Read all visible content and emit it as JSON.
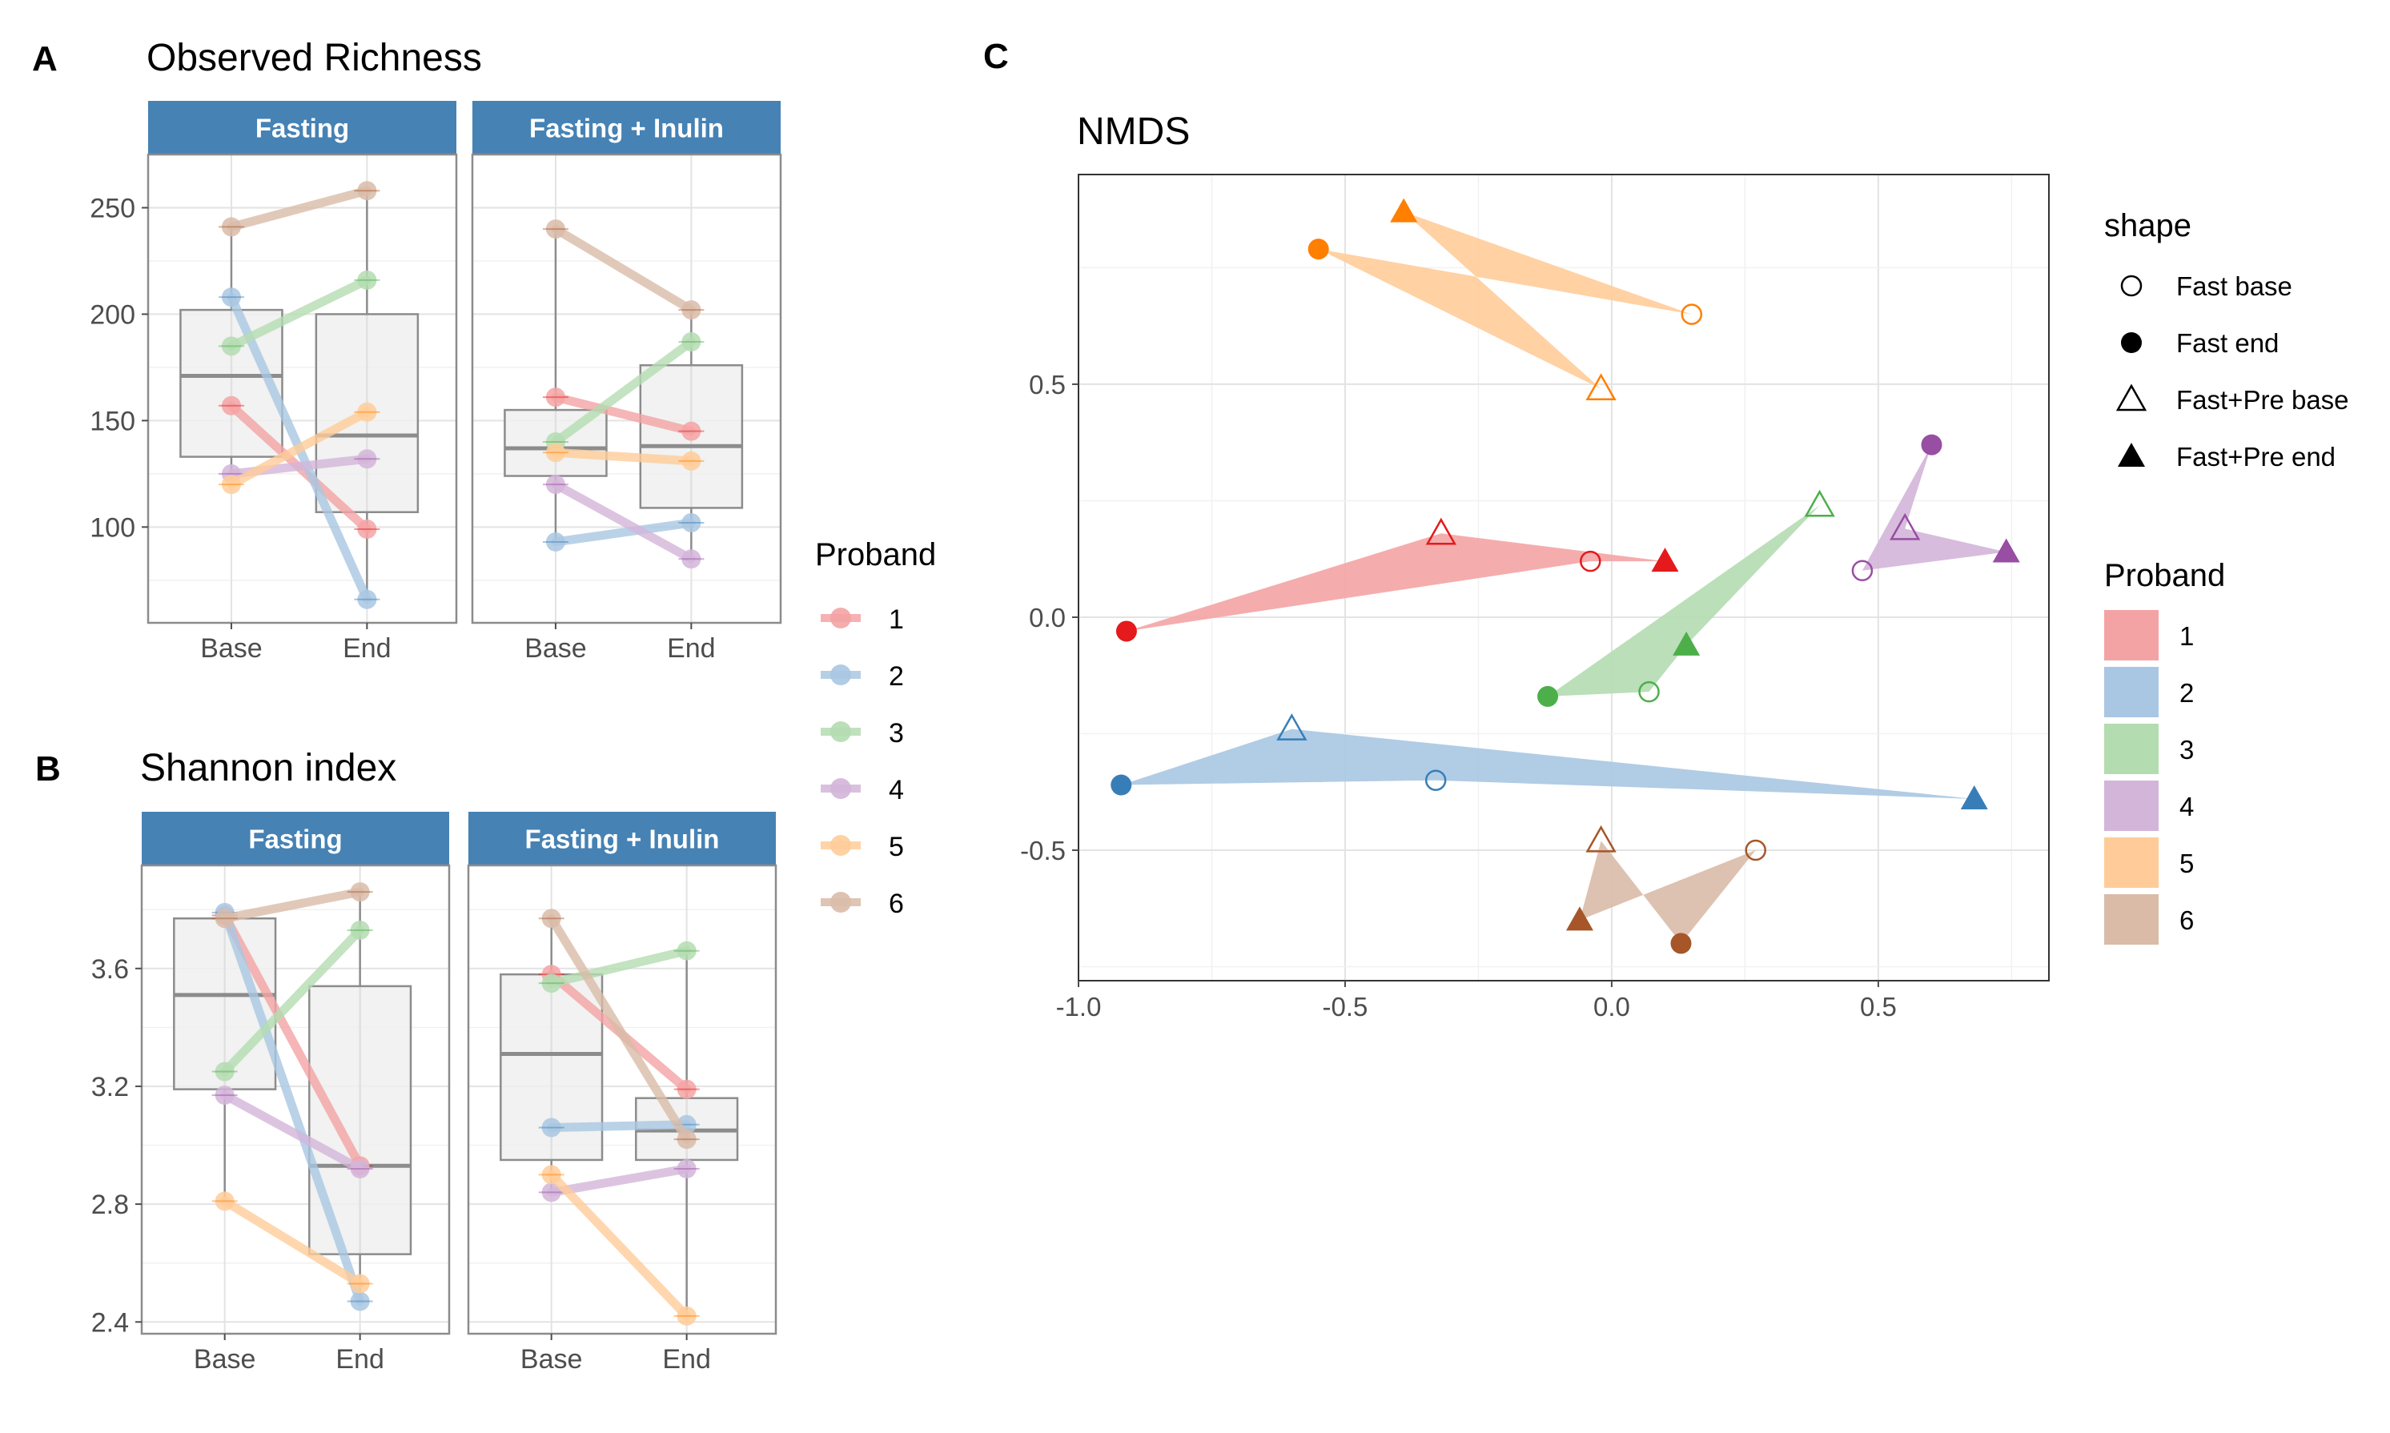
{
  "panels": {
    "A": {
      "label": "A",
      "title": "Observed Richness"
    },
    "B": {
      "label": "B",
      "title": "Shannon index"
    },
    "C": {
      "label": "C",
      "title": "NMDS"
    }
  },
  "colors": {
    "strip_bg": "#4682b4",
    "proband": {
      "1": "#e41a1c",
      "2": "#377eb8",
      "3": "#4daf4a",
      "4": "#984ea3",
      "5": "#ff7f00",
      "6": "#a65628"
    },
    "proband_light": {
      "1": "#f4a3a4",
      "2": "#a9c7e2",
      "3": "#b4dcb1",
      "4": "#d3b5d9",
      "5": "#ffcc99",
      "6": "#d9bba8"
    }
  },
  "chart_data": [
    {
      "id": "A",
      "type": "box-with-paired-lines",
      "title": "Observed Richness",
      "facets": [
        "Fasting",
        "Fasting + Inulin"
      ],
      "categories": [
        "Base",
        "End"
      ],
      "ylim": [
        55,
        275
      ],
      "yticks": [
        100,
        150,
        200,
        250
      ],
      "series": [
        {
          "name": "1",
          "Fasting": [
            157,
            99
          ],
          "Fasting + Inulin": [
            161,
            145
          ]
        },
        {
          "name": "2",
          "Fasting": [
            208,
            66
          ],
          "Fasting + Inulin": [
            93,
            102
          ]
        },
        {
          "name": "3",
          "Fasting": [
            185,
            216
          ],
          "Fasting + Inulin": [
            140,
            187
          ]
        },
        {
          "name": "4",
          "Fasting": [
            125,
            132
          ],
          "Fasting + Inulin": [
            120,
            85
          ]
        },
        {
          "name": "5",
          "Fasting": [
            120,
            154
          ],
          "Fasting + Inulin": [
            135,
            131
          ]
        },
        {
          "name": "6",
          "Fasting": [
            241,
            258
          ],
          "Fasting + Inulin": [
            240,
            202
          ]
        }
      ],
      "boxes": {
        "Fasting": {
          "Base": [
            120,
            133,
            171,
            202,
            241
          ],
          "End": [
            66,
            107,
            143,
            200,
            258
          ]
        },
        "Fasting + Inulin": {
          "Base": [
            93,
            124,
            137,
            155,
            240
          ],
          "End": [
            85,
            109,
            138,
            176,
            202
          ]
        }
      }
    },
    {
      "id": "B",
      "type": "box-with-paired-lines",
      "title": "Shannon index",
      "facets": [
        "Fasting",
        "Fasting + Inulin"
      ],
      "categories": [
        "Base",
        "End"
      ],
      "ylim": [
        2.36,
        3.95
      ],
      "yticks": [
        2.4,
        2.8,
        3.2,
        3.6
      ],
      "ytick_labels": [
        "2.4",
        "2.8",
        "3.2",
        "3.6"
      ],
      "series": [
        {
          "name": "1",
          "Fasting": [
            3.78,
            2.93
          ],
          "Fasting + Inulin": [
            3.58,
            3.19
          ]
        },
        {
          "name": "2",
          "Fasting": [
            3.79,
            2.47
          ],
          "Fasting + Inulin": [
            3.06,
            3.07
          ]
        },
        {
          "name": "3",
          "Fasting": [
            3.25,
            3.73
          ],
          "Fasting + Inulin": [
            3.55,
            3.66
          ]
        },
        {
          "name": "4",
          "Fasting": [
            3.17,
            2.92
          ],
          "Fasting + Inulin": [
            2.84,
            2.92
          ]
        },
        {
          "name": "5",
          "Fasting": [
            2.81,
            2.53
          ],
          "Fasting + Inulin": [
            2.9,
            2.42
          ]
        },
        {
          "name": "6",
          "Fasting": [
            3.77,
            3.86
          ],
          "Fasting + Inulin": [
            3.77,
            3.02
          ]
        }
      ],
      "boxes": {
        "Fasting": {
          "Base": [
            2.81,
            3.19,
            3.51,
            3.77,
            3.79
          ],
          "End": [
            2.47,
            2.63,
            2.93,
            3.54,
            3.86
          ]
        },
        "Fasting + Inulin": {
          "Base": [
            2.84,
            2.95,
            3.31,
            3.58,
            3.77
          ],
          "End": [
            2.42,
            2.95,
            3.05,
            3.16,
            3.66
          ]
        }
      }
    },
    {
      "id": "C",
      "type": "scatter",
      "title": "NMDS",
      "xlim": [
        -1.0,
        0.82
      ],
      "ylim": [
        -0.78,
        0.95
      ],
      "xticks": [
        -1.0,
        -0.5,
        0.0,
        0.5
      ],
      "xtick_labels": [
        "-1.0",
        "-0.5",
        "0.0",
        "0.5"
      ],
      "yticks": [
        -0.5,
        0.0,
        0.5
      ],
      "ytick_labels": [
        "-0.5",
        "0.0",
        "0.5"
      ],
      "shape_order": [
        "Fast base",
        "Fast end",
        "Fast+Pre base",
        "Fast+Pre end"
      ],
      "points": [
        {
          "proband": "1",
          "shape": "Fast base",
          "x": -0.04,
          "y": 0.12
        },
        {
          "proband": "1",
          "shape": "Fast end",
          "x": -0.91,
          "y": -0.03
        },
        {
          "proband": "1",
          "shape": "Fast+Pre base",
          "x": -0.32,
          "y": 0.18
        },
        {
          "proband": "1",
          "shape": "Fast+Pre end",
          "x": 0.1,
          "y": 0.12
        },
        {
          "proband": "2",
          "shape": "Fast base",
          "x": -0.33,
          "y": -0.35
        },
        {
          "proband": "2",
          "shape": "Fast end",
          "x": -0.92,
          "y": -0.36
        },
        {
          "proband": "2",
          "shape": "Fast+Pre base",
          "x": -0.6,
          "y": -0.24
        },
        {
          "proband": "2",
          "shape": "Fast+Pre end",
          "x": 0.68,
          "y": -0.39
        },
        {
          "proband": "3",
          "shape": "Fast base",
          "x": 0.07,
          "y": -0.16
        },
        {
          "proband": "3",
          "shape": "Fast end",
          "x": -0.12,
          "y": -0.17
        },
        {
          "proband": "3",
          "shape": "Fast+Pre base",
          "x": 0.39,
          "y": 0.24
        },
        {
          "proband": "3",
          "shape": "Fast+Pre end",
          "x": 0.14,
          "y": -0.06
        },
        {
          "proband": "4",
          "shape": "Fast base",
          "x": 0.47,
          "y": 0.1
        },
        {
          "proband": "4",
          "shape": "Fast end",
          "x": 0.6,
          "y": 0.37
        },
        {
          "proband": "4",
          "shape": "Fast+Pre base",
          "x": 0.55,
          "y": 0.19
        },
        {
          "proband": "4",
          "shape": "Fast+Pre end",
          "x": 0.74,
          "y": 0.14
        },
        {
          "proband": "5",
          "shape": "Fast base",
          "x": 0.15,
          "y": 0.65
        },
        {
          "proband": "5",
          "shape": "Fast end",
          "x": -0.55,
          "y": 0.79
        },
        {
          "proband": "5",
          "shape": "Fast+Pre base",
          "x": -0.02,
          "y": 0.49
        },
        {
          "proband": "5",
          "shape": "Fast+Pre end",
          "x": -0.39,
          "y": 0.87
        },
        {
          "proband": "6",
          "shape": "Fast base",
          "x": 0.27,
          "y": -0.5
        },
        {
          "proband": "6",
          "shape": "Fast end",
          "x": 0.13,
          "y": -0.7
        },
        {
          "proband": "6",
          "shape": "Fast+Pre base",
          "x": -0.02,
          "y": -0.48
        },
        {
          "proband": "6",
          "shape": "Fast+Pre end",
          "x": -0.06,
          "y": -0.65
        }
      ]
    }
  ],
  "legend_proband": {
    "title": "Proband",
    "items": [
      "1",
      "2",
      "3",
      "4",
      "5",
      "6"
    ]
  },
  "legend_shape": {
    "title": "shape",
    "items": [
      "Fast base",
      "Fast end",
      "Fast+Pre base",
      "Fast+Pre end"
    ]
  },
  "legend_proband_C": {
    "title": "Proband",
    "items": [
      "1",
      "2",
      "3",
      "4",
      "5",
      "6"
    ]
  }
}
